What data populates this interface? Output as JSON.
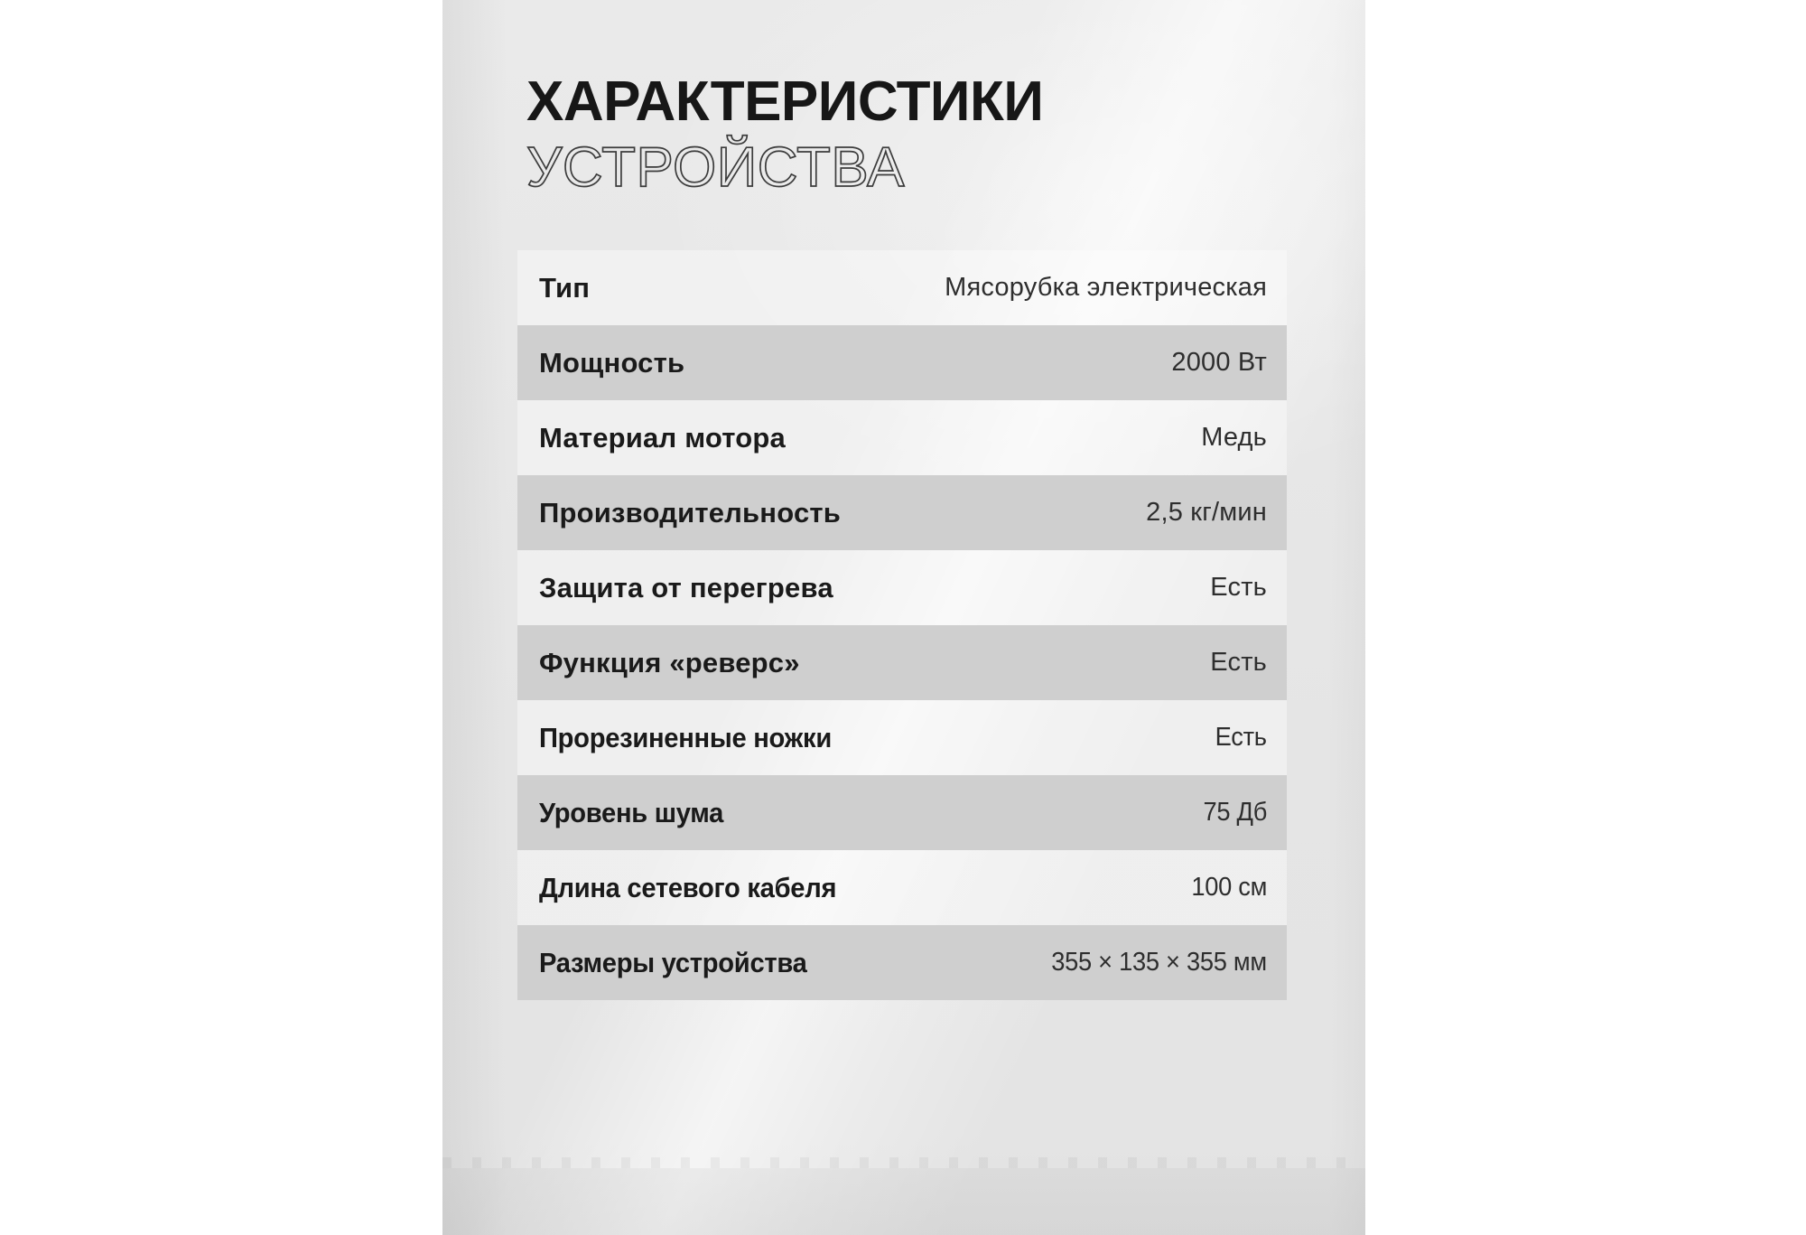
{
  "page": {
    "background_color": "#ffffff",
    "photo_background_color": "#e7e7e7",
    "shaded_row_color": "#cfcfcf",
    "label_text_color": "#1a1a1a",
    "value_text_color": "#2e2e2e"
  },
  "header": {
    "title_line1": "ХАРАКТЕРИСТИКИ",
    "title_line2": "УСТРОЙСТВА"
  },
  "specs": {
    "rows": [
      {
        "label": "Тип",
        "value": "Мясорубка электрическая",
        "shaded": false
      },
      {
        "label": "Мощность",
        "value": "2000 Вт",
        "shaded": true
      },
      {
        "label": "Материал мотора",
        "value": "Медь",
        "shaded": false
      },
      {
        "label": "Производительность",
        "value": "2,5 кг/мин",
        "shaded": true
      },
      {
        "label": "Защита от перегрева",
        "value": "Есть",
        "shaded": false
      },
      {
        "label": "Функция «реверс»",
        "value": "Есть",
        "shaded": true
      },
      {
        "label": "Прорезиненные ножки",
        "value": "Есть",
        "shaded": false
      },
      {
        "label": "Уровень шума",
        "value": "75 Дб",
        "shaded": true
      },
      {
        "label": "Длина сетевого кабеля",
        "value": "100 см",
        "shaded": false
      },
      {
        "label": "Размеры устройства",
        "value": "355 × 135 × 355 мм",
        "shaded": true
      }
    ]
  }
}
